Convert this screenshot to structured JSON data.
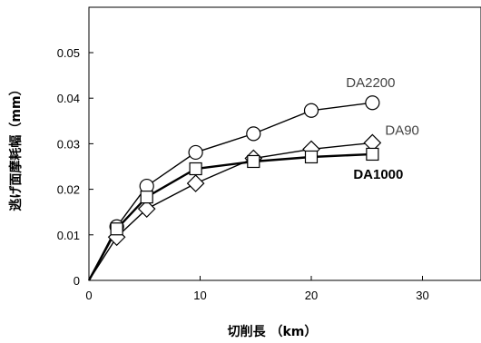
{
  "chart_data": {
    "type": "line",
    "title": "",
    "xlabel": "切削長 （km）",
    "ylabel": "逃げ面摩耗幅（mm）",
    "xlim": [
      0,
      35
    ],
    "ylim": [
      0,
      0.06
    ],
    "xticks": [
      0,
      10,
      20,
      30
    ],
    "yticks": [
      0,
      0.01,
      0.02,
      0.03,
      0.04,
      0.05
    ],
    "xtick_labels": [
      "0",
      "10",
      "20",
      "30"
    ],
    "ytick_labels": [
      "0",
      "0.01",
      "0.02",
      "0.03",
      "0.04",
      "0.05"
    ],
    "grid": false,
    "legend": "none (direct labels)",
    "series": [
      {
        "name": "DA2200",
        "marker": "circle",
        "x": [
          0,
          2.5,
          5.2,
          9.6,
          14.8,
          20,
          25.5
        ],
        "y": [
          0,
          0.0118,
          0.0207,
          0.0281,
          0.0322,
          0.0373,
          0.039
        ]
      },
      {
        "name": "DA90",
        "marker": "diamond",
        "x": [
          0,
          2.5,
          5.2,
          9.6,
          14.8,
          20,
          25.5
        ],
        "y": [
          0,
          0.0095,
          0.0157,
          0.0213,
          0.0268,
          0.0288,
          0.0302
        ]
      },
      {
        "name": "DA1000",
        "marker": "square",
        "x": [
          0,
          2.5,
          5.2,
          9.6,
          14.8,
          20,
          25.5
        ],
        "y": [
          0,
          0.0113,
          0.0183,
          0.0245,
          0.0261,
          0.0271,
          0.0277
        ]
      }
    ]
  }
}
